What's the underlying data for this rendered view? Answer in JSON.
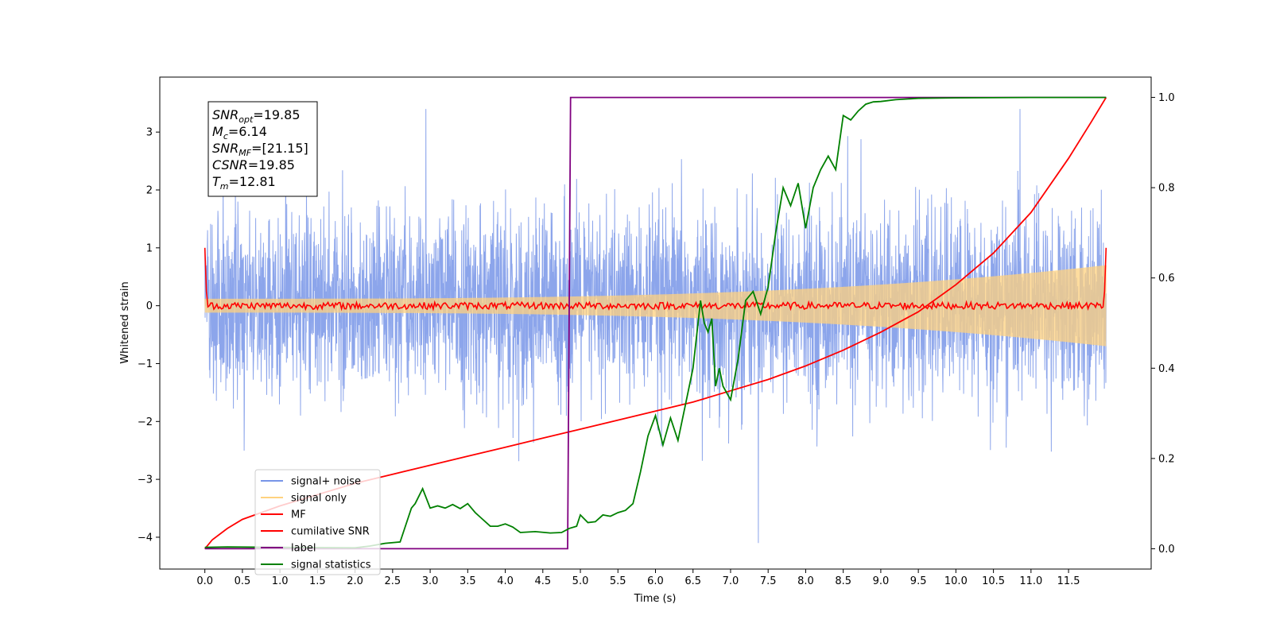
{
  "chart_data": {
    "type": "line",
    "xlabel": "Time (s)",
    "ylabel": "Whitened strain",
    "xlim": [
      -0.6,
      12.6
    ],
    "ylim": [
      -4.55,
      3.95
    ],
    "y2lim": [
      -0.045,
      1.045
    ],
    "x_ticks": [
      0.0,
      0.5,
      1.0,
      1.5,
      2.0,
      2.5,
      3.0,
      3.5,
      4.0,
      4.5,
      5.0,
      5.5,
      6.0,
      6.5,
      7.0,
      7.5,
      8.0,
      8.5,
      9.0,
      9.5,
      10.0,
      10.5,
      11.0,
      11.5
    ],
    "x_tick_labels": [
      "0.0",
      "0.5",
      "1.0",
      "1.5",
      "2.0",
      "2.5",
      "3.0",
      "3.5",
      "4.0",
      "4.5",
      "5.0",
      "5.5",
      "6.0",
      "6.5",
      "7.0",
      "7.5",
      "8.0",
      "8.5",
      "9.0",
      "9.5",
      "10.0",
      "10.5",
      "11.0",
      "11.5"
    ],
    "y_ticks": [
      -4,
      -3,
      -2,
      -1,
      0,
      1,
      2,
      3
    ],
    "y_tick_labels": [
      "−4",
      "−3",
      "−2",
      "−1",
      "0",
      "1",
      "2",
      "3"
    ],
    "y2_ticks": [
      0.0,
      0.2,
      0.4,
      0.6,
      0.8,
      1.0
    ],
    "y2_tick_labels": [
      "0.0",
      "0.2",
      "0.4",
      "0.6",
      "0.8",
      "1.0"
    ],
    "legend_position": "lower-left",
    "grid": false,
    "annotation_lines": [
      {
        "base": "SNR",
        "sub": "opt",
        "value": "=19.85"
      },
      {
        "base": "M",
        "sub": "c",
        "value": "=6.14"
      },
      {
        "base": "SNR",
        "sub": "MF",
        "value": "=[21.15]"
      },
      {
        "base": "CSNR",
        "sub": "",
        "value": "=19.85"
      },
      {
        "base": "T",
        "sub": "m",
        "value": "=12.81"
      }
    ],
    "series": [
      {
        "name": "signal+ noise",
        "color": "#7895e8",
        "axis": "left",
        "kind": "noise",
        "x_range": [
          0.0,
          12.0
        ],
        "std": 0.95,
        "min": -4.1,
        "max": 3.4
      },
      {
        "name": "signal only",
        "color": "#ffd27f",
        "axis": "left",
        "kind": "chirp_envelope",
        "x_range": [
          0.0,
          12.0
        ],
        "amplitude_start": 0.12,
        "amplitude_end": 0.7
      },
      {
        "name": "MF",
        "color": "#ff0000",
        "axis": "left",
        "kind": "mf",
        "x_range": [
          0.0,
          12.0
        ],
        "edge_value": 1.0,
        "level": 0.0,
        "jitter": 0.06
      },
      {
        "name": "cumilative SNR",
        "color": "#ff0000",
        "axis": "right",
        "x": [
          0.0,
          0.1,
          0.3,
          0.5,
          1.0,
          1.5,
          2.0,
          2.5,
          3.0,
          3.5,
          4.0,
          4.5,
          5.0,
          5.5,
          6.0,
          6.5,
          7.0,
          7.5,
          8.0,
          8.5,
          9.0,
          9.5,
          10.0,
          10.5,
          11.0,
          11.5,
          11.8,
          12.0
        ],
        "y": [
          0.0,
          0.02,
          0.045,
          0.065,
          0.095,
          0.12,
          0.145,
          0.165,
          0.185,
          0.205,
          0.225,
          0.245,
          0.265,
          0.285,
          0.305,
          0.325,
          0.35,
          0.375,
          0.405,
          0.44,
          0.48,
          0.525,
          0.585,
          0.655,
          0.745,
          0.865,
          0.945,
          1.0
        ]
      },
      {
        "name": "label",
        "color": "#800080",
        "axis": "right",
        "x": [
          0.0,
          4.83,
          4.87,
          12.0
        ],
        "y": [
          0.0,
          0.0,
          1.0,
          1.0
        ]
      },
      {
        "name": "signal statistics",
        "color": "#008000",
        "axis": "right",
        "x": [
          0.0,
          0.3,
          1.0,
          2.0,
          2.2,
          2.4,
          2.6,
          2.75,
          2.8,
          2.9,
          3.0,
          3.1,
          3.2,
          3.3,
          3.4,
          3.5,
          3.6,
          3.7,
          3.8,
          3.9,
          4.0,
          4.1,
          4.2,
          4.4,
          4.6,
          4.75,
          4.85,
          4.95,
          5.0,
          5.1,
          5.2,
          5.3,
          5.4,
          5.5,
          5.6,
          5.7,
          5.8,
          5.9,
          6.0,
          6.1,
          6.2,
          6.3,
          6.4,
          6.5,
          6.6,
          6.65,
          6.7,
          6.75,
          6.8,
          6.85,
          6.9,
          7.0,
          7.1,
          7.2,
          7.3,
          7.4,
          7.5,
          7.6,
          7.7,
          7.8,
          7.9,
          8.0,
          8.1,
          8.2,
          8.3,
          8.4,
          8.5,
          8.6,
          8.7,
          8.8,
          8.9,
          9.0,
          9.2,
          9.5,
          10.0,
          11.0,
          12.0
        ],
        "y": [
          0.003,
          0.004,
          0.003,
          0.002,
          0.006,
          0.012,
          0.015,
          0.09,
          0.1,
          0.133,
          0.09,
          0.095,
          0.09,
          0.098,
          0.089,
          0.1,
          0.08,
          0.065,
          0.05,
          0.05,
          0.055,
          0.048,
          0.036,
          0.038,
          0.035,
          0.036,
          0.045,
          0.05,
          0.075,
          0.058,
          0.06,
          0.075,
          0.072,
          0.08,
          0.085,
          0.1,
          0.17,
          0.25,
          0.295,
          0.23,
          0.29,
          0.24,
          0.32,
          0.4,
          0.55,
          0.5,
          0.48,
          0.51,
          0.36,
          0.4,
          0.36,
          0.33,
          0.42,
          0.55,
          0.57,
          0.52,
          0.58,
          0.7,
          0.8,
          0.76,
          0.81,
          0.71,
          0.8,
          0.84,
          0.87,
          0.84,
          0.96,
          0.95,
          0.97,
          0.985,
          0.99,
          0.991,
          0.995,
          0.998,
          0.999,
          1.0,
          1.0
        ]
      }
    ]
  }
}
